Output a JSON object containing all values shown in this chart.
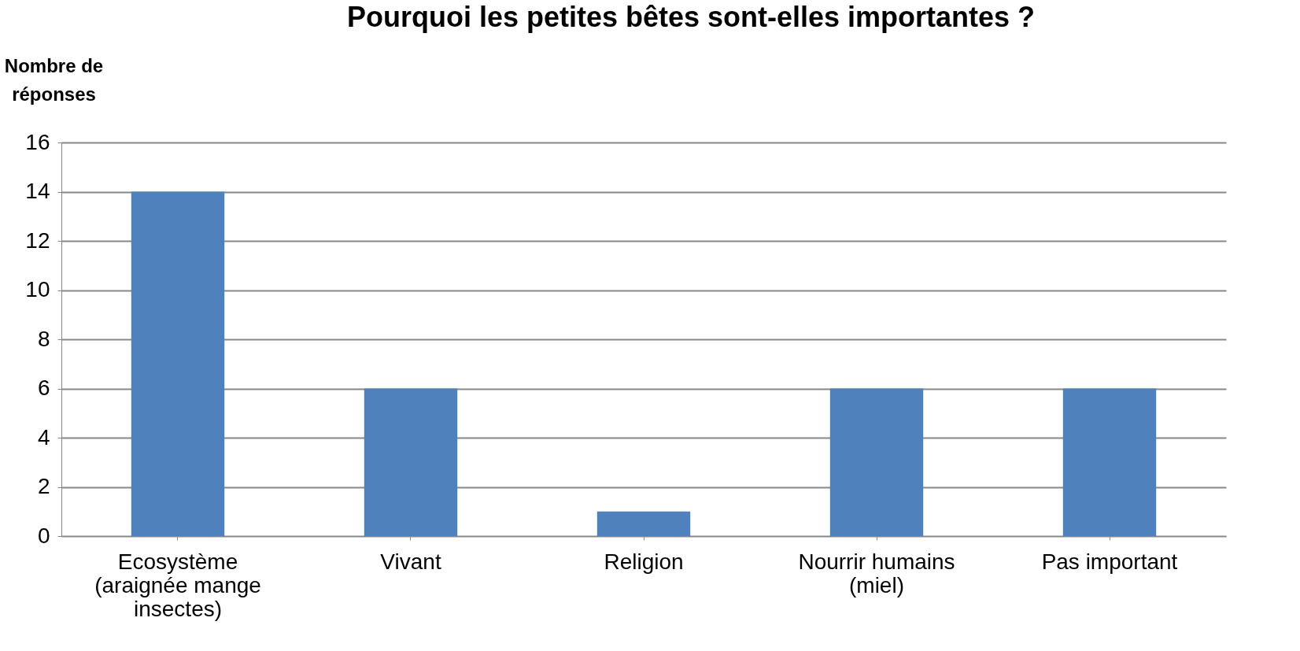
{
  "chart_data": {
    "type": "bar",
    "title": "Pourquoi  les petites bêtes sont-elles importantes ?",
    "ylabel": "Nombre de réponses",
    "categories": [
      "Ecosystème (araignée mange insectes)",
      "Vivant",
      "Religion",
      "Nourrir humains (miel)",
      "Pas important"
    ],
    "values": [
      14,
      6,
      1,
      6,
      6
    ],
    "color": "#4f81bd",
    "ylim": [
      0,
      16
    ],
    "yticks": [
      0,
      2,
      4,
      6,
      8,
      10,
      12,
      14,
      16
    ],
    "grid": "y"
  }
}
